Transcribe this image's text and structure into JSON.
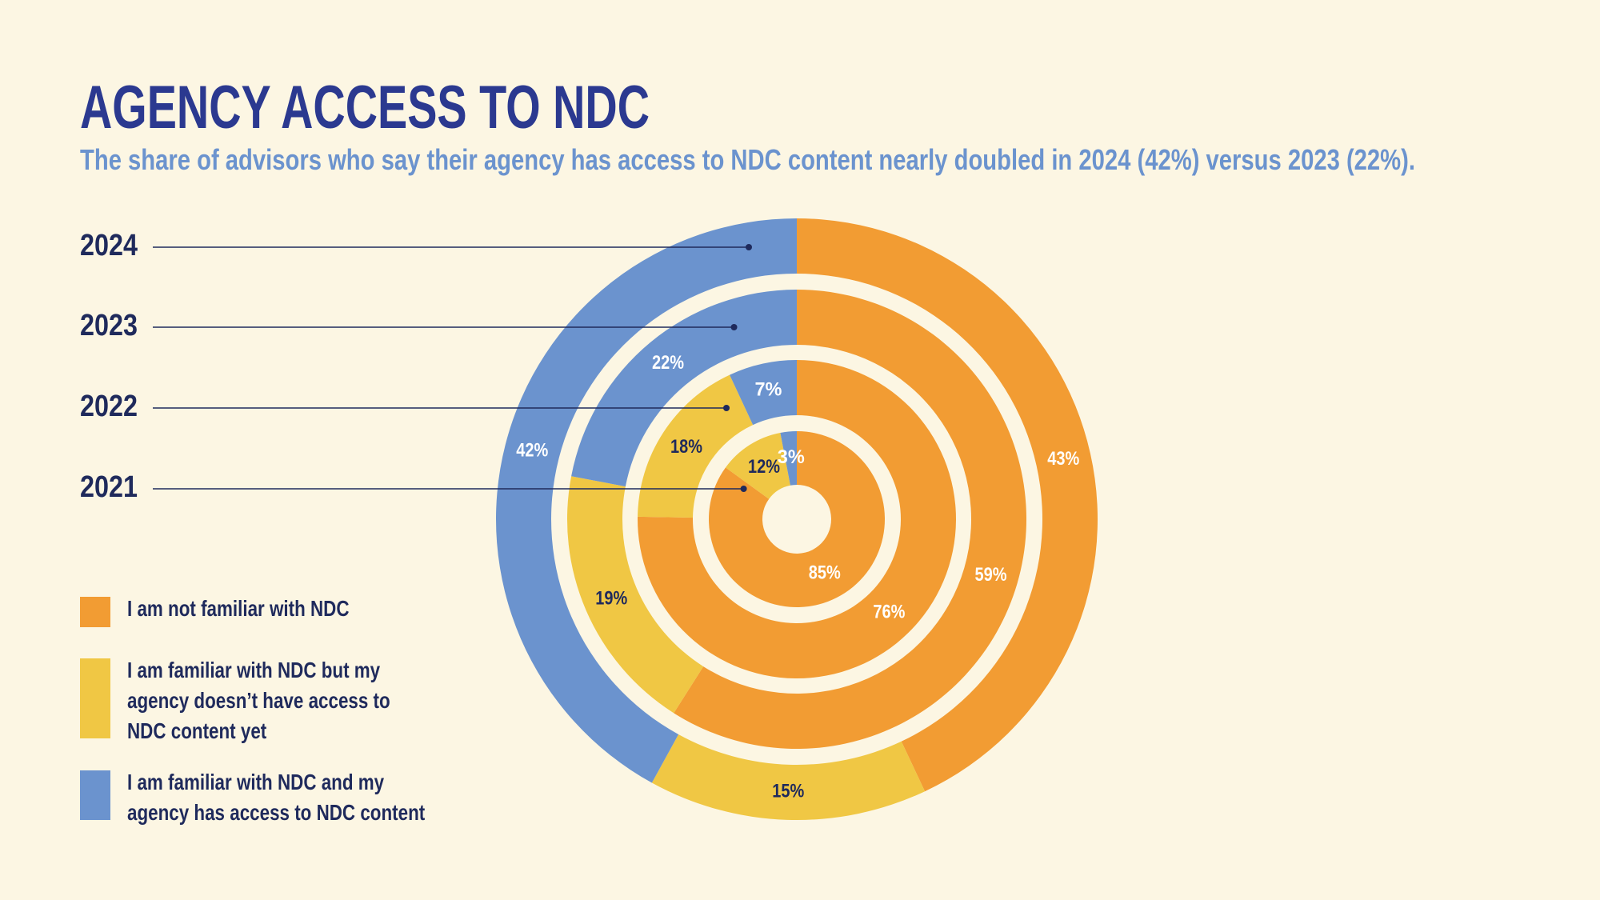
{
  "chart_data": {
    "type": "donut",
    "title": "AGENCY ACCESS TO NDC",
    "subtitle": "The share of advisors who say their agency has access to NDC content nearly doubled in 2024 (42%) versus 2023 (22%).",
    "categories": [
      "I am not familiar with NDC",
      "I am familiar with NDC but my agency doesn’t have access to NDC content yet",
      "I am familiar with NDC and my agency has access to NDC content"
    ],
    "colors": [
      "#F29C33",
      "#F0C744",
      "#6B93CE"
    ],
    "series": [
      {
        "name": "2024",
        "values": [
          43,
          15,
          42
        ],
        "value_labels": [
          "43%",
          "15%",
          "42%"
        ]
      },
      {
        "name": "2023",
        "values": [
          59,
          19,
          22
        ],
        "value_labels": [
          "59%",
          "19%",
          "22%"
        ]
      },
      {
        "name": "2022",
        "values": [
          76,
          18,
          7
        ],
        "value_labels": [
          "76%",
          "18%",
          "7%"
        ]
      },
      {
        "name": "2021",
        "values": [
          85,
          12,
          3
        ],
        "value_labels": [
          "85%",
          "12%",
          "3%"
        ]
      }
    ]
  }
}
